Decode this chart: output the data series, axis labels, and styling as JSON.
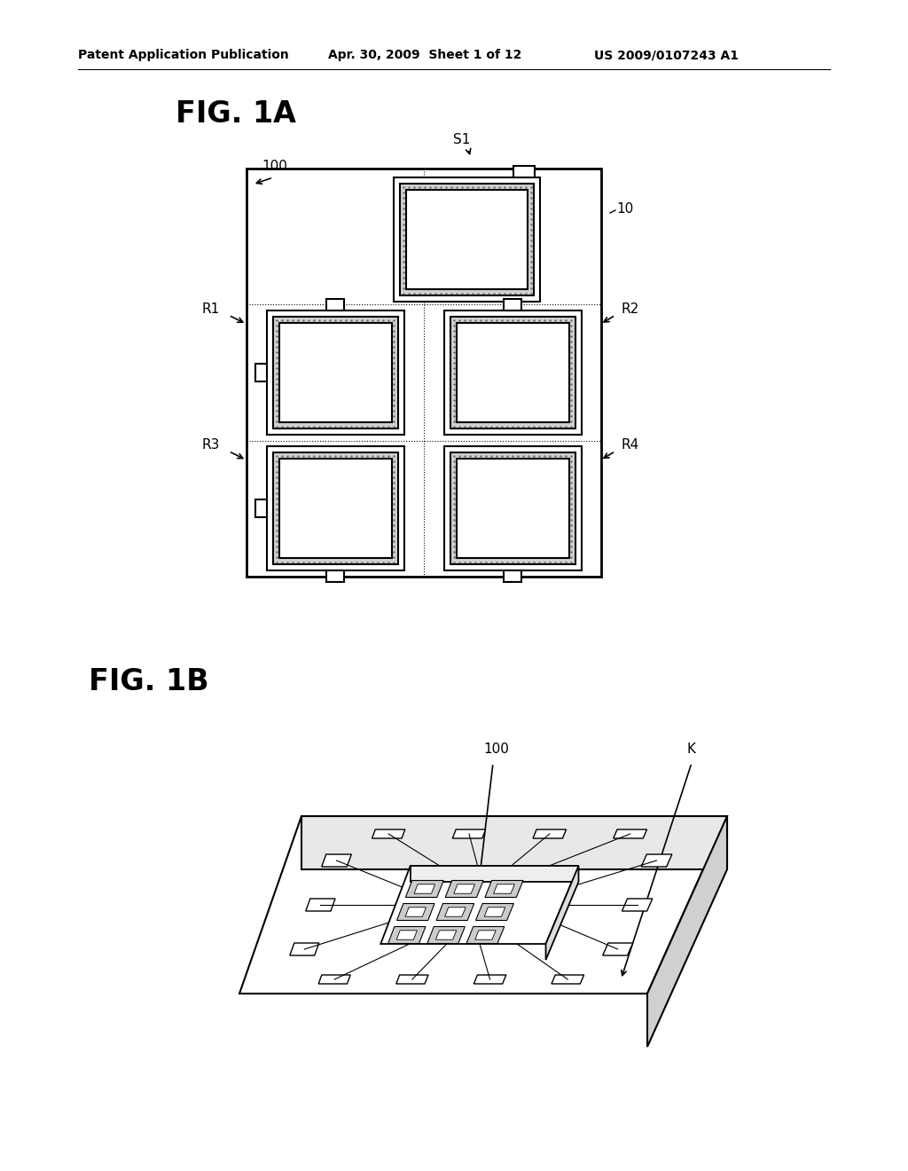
{
  "bg_color": "#ffffff",
  "header_left": "Patent Application Publication",
  "header_mid": "Apr. 30, 2009  Sheet 1 of 12",
  "header_right": "US 2009/0107243 A1",
  "fig1a_label": "FIG. 1A",
  "fig1b_label": "FIG. 1B",
  "label_100_1a": "100",
  "label_S1": "S1",
  "label_10": "10",
  "label_R1": "R1",
  "label_R2": "R2",
  "label_R3": "R3",
  "label_R4": "R4",
  "label_100_1b": "100",
  "label_K": "K",
  "stipple_color": "#d0d0d0",
  "line_color": "#000000"
}
